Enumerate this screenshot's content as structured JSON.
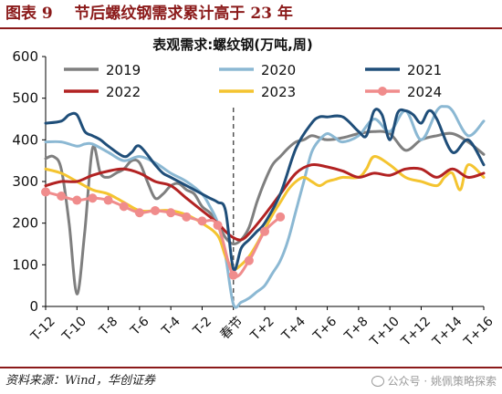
{
  "figure": {
    "label": "图表 9",
    "title": "节后螺纹钢需求累计高于 23 年",
    "source": "资料来源：Wind，华创证券",
    "watermark": "公众号 · 姚佩策略探索"
  },
  "chart_data": {
    "type": "line",
    "title": "表观需求:螺纹钢(万吨,周)",
    "xlabel": "",
    "ylabel": "",
    "ylim": [
      0,
      600
    ],
    "yticks": [
      0,
      100,
      200,
      300,
      400,
      500,
      600
    ],
    "grid": false,
    "legend": "top",
    "x_range": [
      -12,
      16
    ],
    "x_tick_positions": [
      -12,
      -10,
      -8,
      -6,
      -4,
      -2,
      0,
      2,
      4,
      6,
      8,
      10,
      12,
      14,
      16
    ],
    "x_tick_labels": [
      "T-12",
      "T-10",
      "T-8",
      "T-6",
      "T-4",
      "T-2",
      "春节",
      "T+2",
      "T+4",
      "T+6",
      "T+8",
      "T+10",
      "T+12",
      "T+14",
      "T+16"
    ],
    "spring_festival_x": 0,
    "series": [
      {
        "name": "2019",
        "color": "#7f7f7f",
        "x": [
          -12,
          -11.5,
          -11,
          -10.5,
          -10,
          -9.5,
          -9,
          -8.5,
          -8,
          -7.5,
          -7,
          -6.5,
          -6,
          -5.5,
          -5,
          -4.5,
          -4,
          -3.5,
          -3,
          -2.5,
          -2,
          -1.5,
          -1,
          -0.5,
          0,
          0.5,
          1,
          1.5,
          2,
          2.5,
          3,
          3.5,
          4,
          4.5,
          5,
          5.5,
          6,
          7,
          8,
          9,
          10,
          11,
          12,
          13,
          14,
          15,
          16
        ],
        "values": [
          355,
          360,
          330,
          200,
          30,
          180,
          380,
          320,
          310,
          320,
          330,
          350,
          345,
          300,
          260,
          270,
          290,
          295,
          280,
          270,
          240,
          225,
          200,
          165,
          150,
          160,
          190,
          250,
          300,
          340,
          360,
          380,
          395,
          400,
          410,
          405,
          400,
          405,
          415,
          420,
          415,
          375,
          400,
          410,
          415,
          395,
          365
        ]
      },
      {
        "name": "2020",
        "color": "#8bb8d3",
        "x": [
          -12,
          -11,
          -10,
          -9.5,
          -9,
          -8,
          -7,
          -6,
          -5,
          -4,
          -3,
          -2,
          -1.5,
          -1,
          -0.5,
          0,
          0.5,
          1,
          1.5,
          2,
          2.5,
          3,
          3.5,
          4,
          4.5,
          5,
          5.5,
          6,
          6.5,
          7,
          8,
          9,
          10,
          11,
          12,
          13,
          13.5,
          14,
          15,
          16
        ],
        "values": [
          395,
          395,
          385,
          390,
          390,
          370,
          350,
          360,
          345,
          320,
          300,
          270,
          240,
          200,
          120,
          5,
          10,
          20,
          35,
          50,
          80,
          110,
          160,
          230,
          300,
          370,
          400,
          415,
          405,
          395,
          410,
          450,
          420,
          470,
          400,
          470,
          480,
          470,
          410,
          445
        ]
      },
      {
        "name": "2021",
        "color": "#1f4e79",
        "x": [
          -12,
          -11,
          -10.5,
          -10,
          -9.5,
          -9,
          -8.5,
          -8,
          -7,
          -6.5,
          -6,
          -5,
          -4.5,
          -4,
          -3,
          -2,
          -1.5,
          -1,
          -0.5,
          0,
          0.5,
          1,
          1.5,
          2,
          3,
          4,
          5,
          5.5,
          6,
          7,
          8,
          8.5,
          9,
          9.5,
          10,
          10.5,
          11,
          11.5,
          12,
          12.5,
          13,
          14,
          15,
          16
        ],
        "values": [
          440,
          445,
          460,
          460,
          420,
          410,
          400,
          385,
          360,
          370,
          385,
          340,
          320,
          310,
          290,
          270,
          260,
          250,
          230,
          90,
          140,
          160,
          180,
          200,
          270,
          380,
          440,
          455,
          455,
          455,
          420,
          410,
          470,
          460,
          400,
          465,
          470,
          460,
          440,
          470,
          450,
          370,
          400,
          340
        ]
      },
      {
        "name": "2022",
        "color": "#b22222",
        "x": [
          -12,
          -11,
          -10,
          -9,
          -8,
          -7,
          -6,
          -5,
          -4,
          -3,
          -2,
          -1,
          -0.5,
          0,
          0.5,
          1,
          2,
          3,
          4,
          5,
          6,
          7,
          8,
          9,
          10,
          11,
          12,
          13,
          14,
          15,
          16
        ],
        "values": [
          290,
          300,
          300,
          315,
          325,
          330,
          320,
          300,
          290,
          260,
          230,
          200,
          180,
          165,
          160,
          175,
          220,
          270,
          320,
          340,
          335,
          325,
          310,
          320,
          315,
          330,
          330,
          310,
          330,
          310,
          320
        ]
      },
      {
        "name": "2023",
        "color": "#f4c430",
        "x": [
          -12,
          -11,
          -10,
          -9,
          -8,
          -7,
          -6,
          -5,
          -4,
          -3,
          -2,
          -1,
          -0.5,
          0,
          0.5,
          1,
          1.5,
          2,
          2.5,
          3,
          3.5,
          4,
          4.5,
          5,
          5.5,
          6,
          6.5,
          7,
          8,
          8.5,
          9,
          10,
          11,
          12,
          13,
          13.5,
          14,
          14.5,
          15,
          16
        ],
        "values": [
          330,
          320,
          300,
          280,
          270,
          250,
          230,
          230,
          230,
          220,
          200,
          170,
          120,
          90,
          100,
          120,
          150,
          185,
          220,
          250,
          280,
          300,
          310,
          300,
          290,
          300,
          305,
          310,
          310,
          330,
          360,
          340,
          310,
          300,
          290,
          310,
          320,
          280,
          340,
          310
        ]
      },
      {
        "name": "2024",
        "color": "#f08c8c",
        "markers": true,
        "x": [
          -12,
          -11,
          -10,
          -9,
          -8,
          -7,
          -6,
          -5,
          -4,
          -3,
          -2,
          -1,
          0,
          1,
          2,
          3
        ],
        "values": [
          275,
          265,
          255,
          260,
          255,
          240,
          225,
          230,
          225,
          215,
          205,
          195,
          75,
          110,
          180,
          215
        ]
      }
    ]
  }
}
